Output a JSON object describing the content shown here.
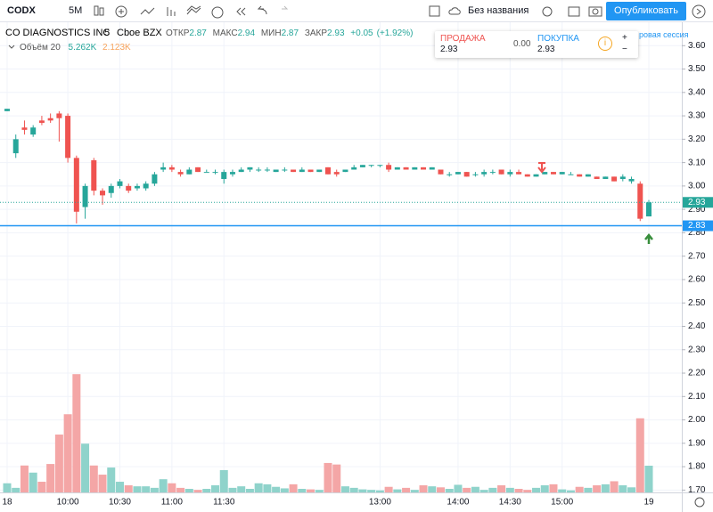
{
  "toolbar": {
    "symbol": "CODX",
    "interval": "5M",
    "layout_name": "Без названия",
    "publish": "Опубликовать"
  },
  "header": {
    "name": "CO DIAGNOSTICS INC",
    "interval": "5",
    "exchange": "Cboe BZX",
    "open_label": "ОТКР",
    "high_label": "МАКС",
    "low_label": "МИН",
    "close_label": "ЗАКР",
    "change": "+0.05",
    "change_pct": "(+1.92%)"
  },
  "legend": {
    "volume_title": "Объём 20",
    "volume": {
      "value": 5262,
      "label": "5.262K"
    },
    "volume_ma": {
      "value": 2123,
      "label": "2.123K"
    }
  },
  "trade": {
    "sell_label": "ПРОДАЖА",
    "sell_price": "2.93",
    "spread": "0.00",
    "buy_label": "ПОКУПКА",
    "buy_price": "2.93",
    "plus": "+",
    "minus": "−",
    "session": "ровая сессия"
  },
  "chart_data": {
    "type": "candlestick",
    "up_color": "#26a69a",
    "down_color": "#ef5350",
    "volume_up_color": "#8fd3cb",
    "volume_down_color": "#f4a6a6",
    "categories": [
      "18",
      null,
      null,
      null,
      null,
      null,
      null,
      "10:00",
      null,
      null,
      null,
      null,
      null,
      "10:30",
      null,
      null,
      null,
      null,
      null,
      "11:00",
      null,
      null,
      null,
      null,
      null,
      "11:30",
      null,
      null,
      null,
      null,
      null,
      null,
      null,
      null,
      null,
      null,
      null,
      null,
      null,
      null,
      null,
      null,
      null,
      "13:00",
      null,
      null,
      null,
      null,
      null,
      null,
      null,
      null,
      "14:00",
      null,
      null,
      null,
      null,
      null,
      "14:30",
      null,
      null,
      null,
      null,
      null,
      "15:00",
      null,
      null,
      null,
      null,
      null,
      null,
      null,
      null,
      null,
      "19"
    ],
    "open": [
      3.32,
      3.14,
      3.25,
      3.22,
      3.28,
      3.29,
      3.31,
      3.3,
      3.12,
      2.91,
      3.11,
      2.98,
      2.97,
      3.0,
      3.0,
      2.99,
      2.99,
      3.01,
      3.07,
      3.08,
      3.06,
      3.05,
      3.08,
      3.06,
      3.06,
      3.03,
      3.05,
      3.06,
      3.07,
      3.07,
      3.07,
      3.06,
      3.07,
      3.07,
      3.06,
      3.07,
      3.06,
      3.08,
      3.06,
      3.06,
      3.07,
      3.08,
      3.09,
      3.09,
      3.09,
      3.07,
      3.08,
      3.07,
      3.08,
      3.07,
      3.07,
      3.05,
      3.05,
      3.06,
      3.05,
      3.05,
      3.06,
      3.07,
      3.05,
      3.06,
      3.05,
      3.04,
      3.05,
      3.06,
      3.05,
      3.05,
      3.05,
      3.04,
      3.04,
      3.03,
      3.04,
      3.03,
      3.02,
      3.01,
      2.87
    ],
    "high": [
      3.33,
      3.22,
      3.28,
      3.26,
      3.3,
      3.31,
      3.32,
      3.31,
      3.13,
      3.01,
      3.12,
      2.99,
      3.01,
      3.03,
      3.01,
      3.01,
      3.02,
      3.06,
      3.1,
      3.09,
      3.07,
      3.08,
      3.08,
      3.07,
      3.07,
      3.07,
      3.07,
      3.08,
      3.08,
      3.08,
      3.08,
      3.07,
      3.08,
      3.07,
      3.08,
      3.07,
      3.07,
      3.08,
      3.07,
      3.07,
      3.09,
      3.09,
      3.09,
      3.09,
      3.1,
      3.08,
      3.08,
      3.08,
      3.08,
      3.08,
      3.07,
      3.06,
      3.06,
      3.06,
      3.06,
      3.07,
      3.07,
      3.07,
      3.07,
      3.07,
      3.05,
      3.05,
      3.06,
      3.06,
      3.06,
      3.06,
      3.05,
      3.05,
      3.04,
      3.04,
      3.04,
      3.05,
      3.04,
      3.02,
      2.94
    ],
    "low": [
      3.32,
      3.12,
      3.22,
      3.21,
      3.26,
      3.27,
      3.19,
      3.1,
      2.84,
      2.86,
      2.96,
      2.92,
      2.95,
      2.99,
      2.97,
      2.98,
      2.98,
      3.0,
      3.06,
      3.06,
      3.04,
      3.05,
      3.06,
      3.06,
      3.05,
      3.01,
      3.04,
      3.06,
      3.06,
      3.06,
      3.06,
      3.06,
      3.06,
      3.06,
      3.06,
      3.06,
      3.06,
      3.05,
      3.04,
      3.06,
      3.07,
      3.08,
      3.08,
      3.08,
      3.06,
      3.07,
      3.07,
      3.07,
      3.07,
      3.07,
      3.05,
      3.04,
      3.05,
      3.04,
      3.04,
      3.04,
      3.05,
      3.05,
      3.04,
      3.05,
      3.04,
      3.04,
      3.05,
      3.05,
      3.05,
      3.05,
      3.04,
      3.04,
      3.03,
      3.03,
      3.02,
      3.02,
      3.01,
      2.85,
      2.87
    ],
    "close": [
      3.33,
      3.2,
      3.24,
      3.25,
      3.27,
      3.28,
      3.29,
      3.12,
      2.89,
      3.0,
      2.98,
      2.96,
      3.0,
      3.02,
      2.98,
      3.0,
      3.01,
      3.05,
      3.08,
      3.07,
      3.05,
      3.07,
      3.06,
      3.06,
      3.06,
      3.06,
      3.06,
      3.07,
      3.08,
      3.07,
      3.07,
      3.07,
      3.07,
      3.06,
      3.07,
      3.06,
      3.07,
      3.05,
      3.05,
      3.07,
      3.08,
      3.09,
      3.09,
      3.09,
      3.07,
      3.08,
      3.07,
      3.08,
      3.07,
      3.08,
      3.05,
      3.05,
      3.06,
      3.04,
      3.05,
      3.06,
      3.06,
      3.05,
      3.06,
      3.05,
      3.04,
      3.05,
      3.06,
      3.05,
      3.06,
      3.05,
      3.04,
      3.05,
      3.03,
      3.04,
      3.02,
      3.04,
      3.03,
      2.86,
      2.93
    ],
    "volume": [
      1800,
      900,
      5300,
      3900,
      2100,
      5600,
      11400,
      15400,
      23300,
      9600,
      5300,
      3500,
      4900,
      2100,
      1400,
      1200,
      1200,
      900,
      2600,
      1800,
      900,
      700,
      500,
      700,
      1400,
      4400,
      900,
      1200,
      700,
      1800,
      1600,
      1100,
      800,
      1600,
      700,
      600,
      500,
      5800,
      5500,
      1200,
      900,
      600,
      500,
      400,
      1100,
      600,
      900,
      500,
      1400,
      1200,
      1000,
      700,
      1500,
      900,
      1100,
      500,
      900,
      1400,
      900,
      700,
      500,
      900,
      1400,
      1600,
      600,
      400,
      1100,
      900,
      1400,
      1600,
      2200,
      1400,
      1000,
      14600,
      5262
    ],
    "ylim": [
      1.69,
      3.7
    ],
    "yticks": [
      {
        "value": 1.7,
        "label": "1.70"
      },
      {
        "value": 1.8,
        "label": "1.80"
      },
      {
        "value": 1.9,
        "label": "1.90"
      },
      {
        "value": 2.0,
        "label": "2.00"
      },
      {
        "value": 2.1,
        "label": "2.10"
      },
      {
        "value": 2.2,
        "label": "2.20"
      },
      {
        "value": 2.3,
        "label": "2.30"
      },
      {
        "value": 2.4,
        "label": "2.40"
      },
      {
        "value": 2.5,
        "label": "2.50"
      },
      {
        "value": 2.6,
        "label": "2.60"
      },
      {
        "value": 2.7,
        "label": "2.70"
      },
      {
        "value": 2.8,
        "label": "2.80"
      },
      {
        "value": 2.9,
        "label": "2.90"
      },
      {
        "value": 3.0,
        "label": "3.00"
      },
      {
        "value": 3.1,
        "label": "3.10"
      },
      {
        "value": 3.2,
        "label": "3.20"
      },
      {
        "value": 3.3,
        "label": "3.30"
      },
      {
        "value": 3.4,
        "label": "3.40"
      },
      {
        "value": 3.5,
        "label": "3.50"
      },
      {
        "value": 3.6,
        "label": "3.60"
      }
    ],
    "last_price": {
      "value": 2.93,
      "color": "#26a69a"
    },
    "horizontal_line": {
      "value": 2.83,
      "color": "#2196f3"
    },
    "grid": true
  }
}
